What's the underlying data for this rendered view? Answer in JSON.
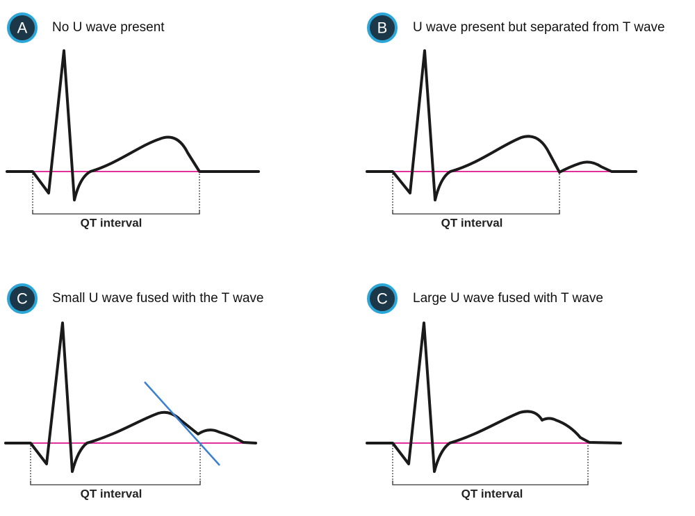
{
  "panels": [
    {
      "badge": "A",
      "title": "No U wave present",
      "interval_label": "QT interval"
    },
    {
      "badge": "B",
      "title": "U wave present but separated from T wave",
      "interval_label": "QT interval"
    },
    {
      "badge": "C",
      "title": "Small U wave fused with the T wave",
      "interval_label": "QT interval"
    },
    {
      "badge": "C",
      "title": "Large U wave fused with T wave",
      "interval_label": "QT interval"
    }
  ]
}
